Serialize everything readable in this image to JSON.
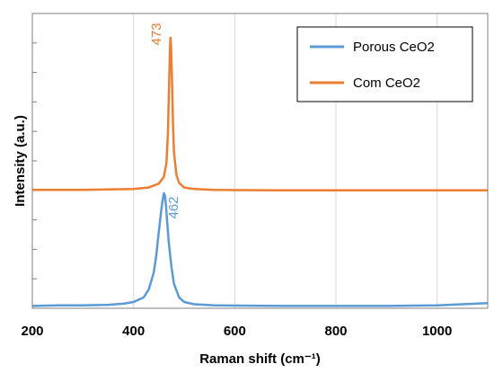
{
  "chart_data": {
    "type": "line",
    "xlabel": "Raman shift (cm⁻¹)",
    "ylabel": "Intensity (a.u.)",
    "xlim": [
      200,
      1100
    ],
    "xticks": [
      200,
      400,
      600,
      800,
      1000
    ],
    "y_ticks_count": 10,
    "grid": "vertical gridlines at x ticks",
    "legend_position": "top-right",
    "series": [
      {
        "name": "Porous CeO2",
        "color": "#5B9BD5",
        "peak_label": "462",
        "x": [
          200,
          250,
          300,
          350,
          380,
          400,
          420,
          430,
          440,
          445,
          450,
          455,
          458,
          460,
          462,
          464,
          466,
          470,
          475,
          480,
          490,
          500,
          520,
          560,
          600,
          700,
          800,
          900,
          1000,
          1050,
          1100
        ],
        "y": [
          0.005,
          0.01,
          0.01,
          0.015,
          0.025,
          0.04,
          0.08,
          0.15,
          0.3,
          0.45,
          0.66,
          0.86,
          0.95,
          1.0,
          0.98,
          0.9,
          0.78,
          0.55,
          0.35,
          0.2,
          0.08,
          0.04,
          0.02,
          0.01,
          0.008,
          0.005,
          0.005,
          0.005,
          0.01,
          0.02,
          0.03
        ]
      },
      {
        "name": "Com CeO2",
        "color": "#ED7D31",
        "peak_label": "473",
        "x": [
          200,
          300,
          400,
          430,
          450,
          460,
          465,
          468,
          470,
          472,
          473,
          474,
          476,
          478,
          480,
          485,
          490,
          500,
          520,
          560,
          600,
          700,
          800,
          900,
          1000,
          1100
        ],
        "y": [
          0.005,
          0.005,
          0.01,
          0.02,
          0.045,
          0.09,
          0.18,
          0.38,
          0.65,
          0.92,
          1.0,
          0.95,
          0.72,
          0.44,
          0.25,
          0.1,
          0.05,
          0.02,
          0.01,
          0.005,
          0.003,
          0.002,
          0.002,
          0.002,
          0.002,
          0.002
        ]
      }
    ]
  }
}
